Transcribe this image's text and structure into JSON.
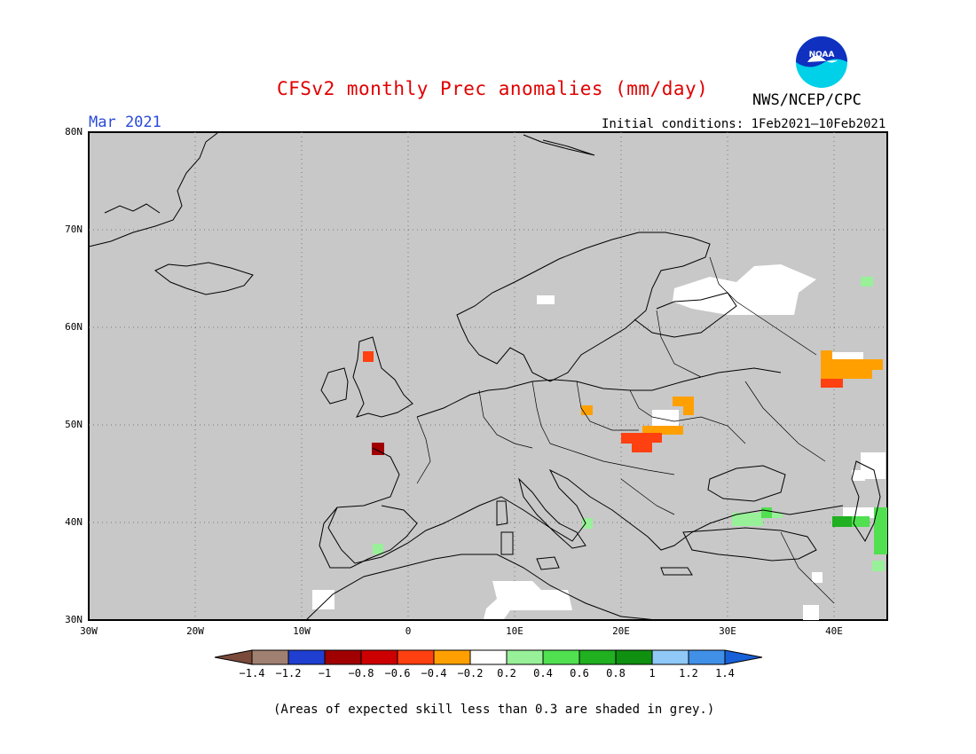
{
  "header": {
    "title": "CFSv2 monthly Prec anomalies (mm/day)",
    "period": "Mar 2021",
    "initial_conditions": "Initial conditions: 1Feb2021—10Feb2021",
    "agency": "NWS/NCEP/CPC",
    "logo_text": "NOAA"
  },
  "axes": {
    "lat_labels": [
      "80N",
      "70N",
      "60N",
      "50N",
      "40N",
      "30N"
    ],
    "lon_labels": [
      "30W",
      "20W",
      "10W",
      "0",
      "10E",
      "20E",
      "30E",
      "40E"
    ]
  },
  "colorbar": {
    "colors": [
      "#7a4a3a",
      "#a08070",
      "#1f3fd0",
      "#a00000",
      "#cc0000",
      "#ff4010",
      "#ffa000",
      "#ffffff",
      "#98f098",
      "#50e050",
      "#20b020",
      "#109010",
      "#90c8f8",
      "#4090e8",
      "#1860d8"
    ],
    "labels": [
      "−1.4",
      "−1.2",
      "−1",
      "−0.8",
      "−0.6",
      "−0.4",
      "−0.2",
      "0.2",
      "0.4",
      "0.6",
      "0.8",
      "1",
      "1.2",
      "1.4"
    ]
  },
  "map_layers": {
    "ocean_color": "#c8c8c8",
    "land_color": "#c8c8c8",
    "coast_color": "#000000"
  },
  "anomaly_patches": [
    {
      "name": "scotland-red",
      "color": "#ff4010"
    },
    {
      "name": "brittany-darkred",
      "color": "#a00000"
    },
    {
      "name": "poland-orange",
      "color": "#ffa000"
    },
    {
      "name": "ukraine-orange",
      "color": "#ffa000"
    },
    {
      "name": "carpathian-red",
      "color": "#ff4010"
    },
    {
      "name": "russia-orange",
      "color": "#ffa000"
    },
    {
      "name": "turkey-green",
      "color": "#98f098"
    },
    {
      "name": "caucasus-green",
      "color": "#50e050"
    }
  ],
  "footer": "(Areas of expected skill less than 0.3 are shaded in grey.)"
}
